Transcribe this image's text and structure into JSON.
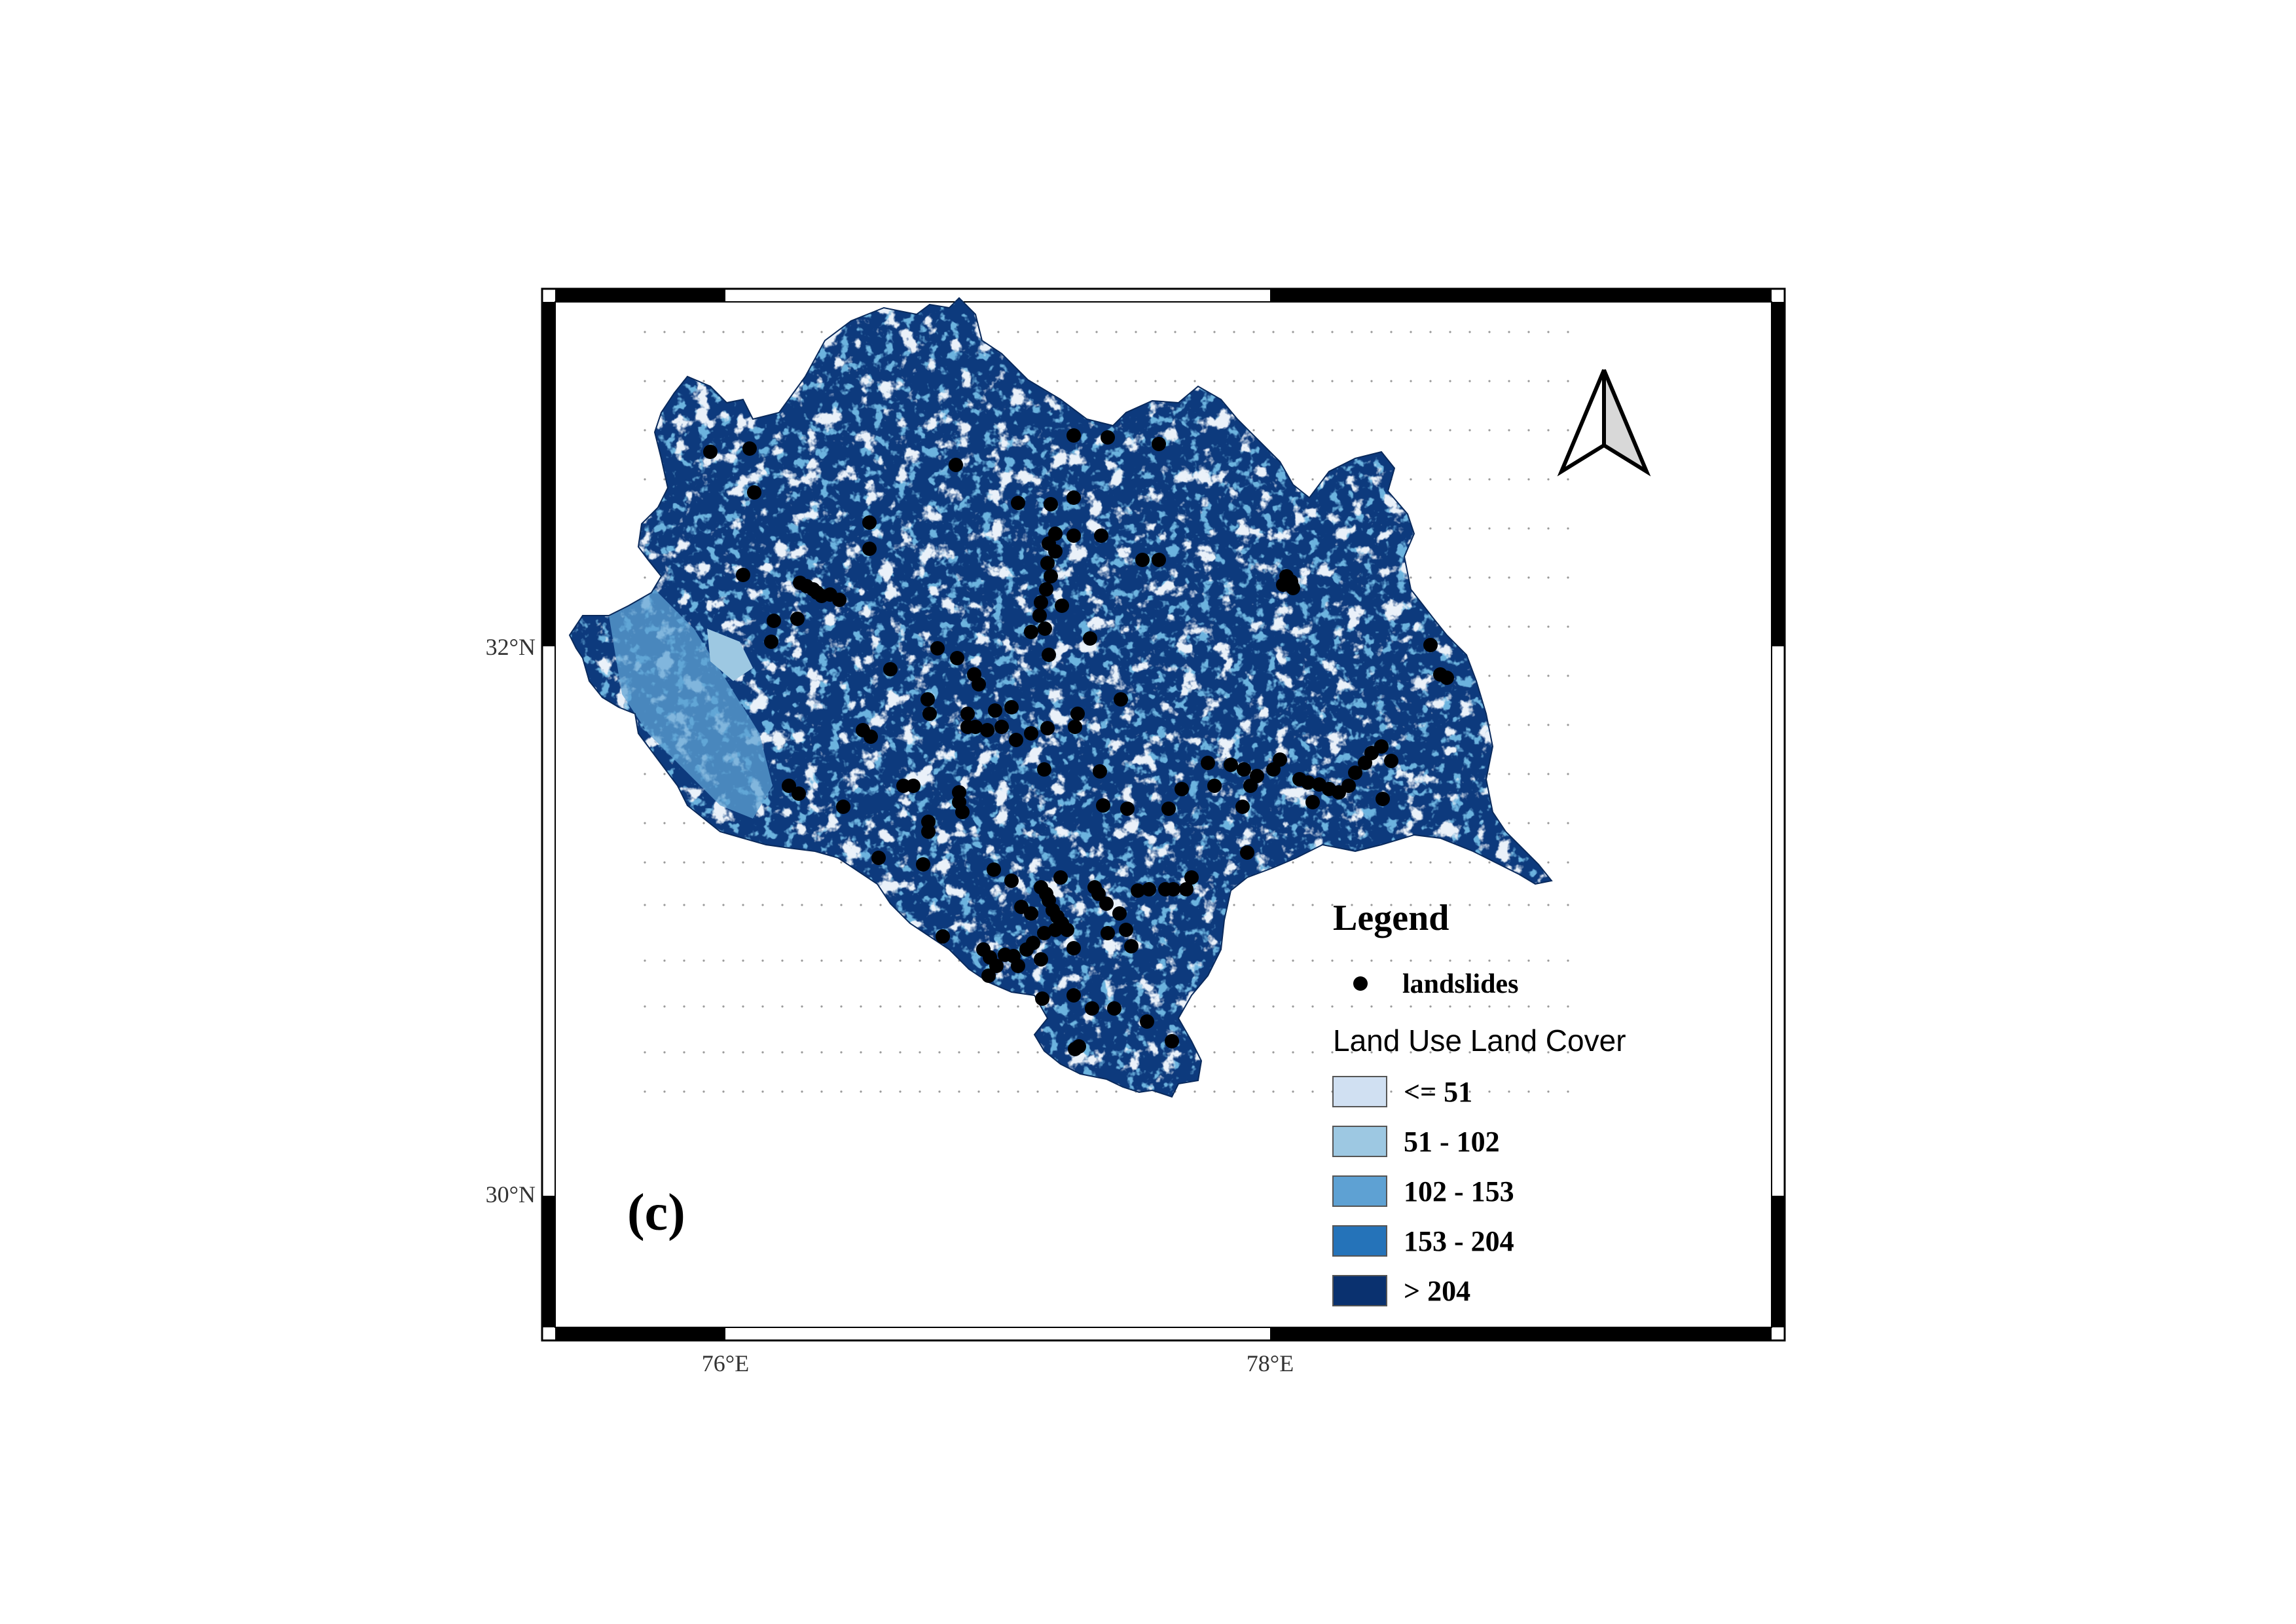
{
  "panel_label": "(c)",
  "axes": {
    "lat_ticks": [
      {
        "value": 32,
        "label": "32°N"
      },
      {
        "value": 30,
        "label": "30°N"
      }
    ],
    "lon_ticks": [
      {
        "value": 76,
        "label": "76°E"
      },
      {
        "value": 78,
        "label": "78°E"
      }
    ]
  },
  "north_arrow": {
    "icon": "north-arrow-icon"
  },
  "legend": {
    "title": "Legend",
    "point_layer": {
      "label": "landslides",
      "color": "#000000"
    },
    "raster_title": "Land Use Land Cover",
    "classes": [
      {
        "label": "<= 51",
        "color": "#d0e0f2"
      },
      {
        "label": "51 - 102",
        "color": "#9dc8e2"
      },
      {
        "label": "102 - 153",
        "color": "#5ea1d3"
      },
      {
        "label": "153 - 204",
        "color": "#2573b9"
      },
      {
        "label": "> 204",
        "color": "#0a316f"
      }
    ]
  },
  "colors": {
    "background": "#ffffff",
    "frame": "#000000",
    "region_base": "#0d3a7d",
    "landslide": "#000000"
  }
}
